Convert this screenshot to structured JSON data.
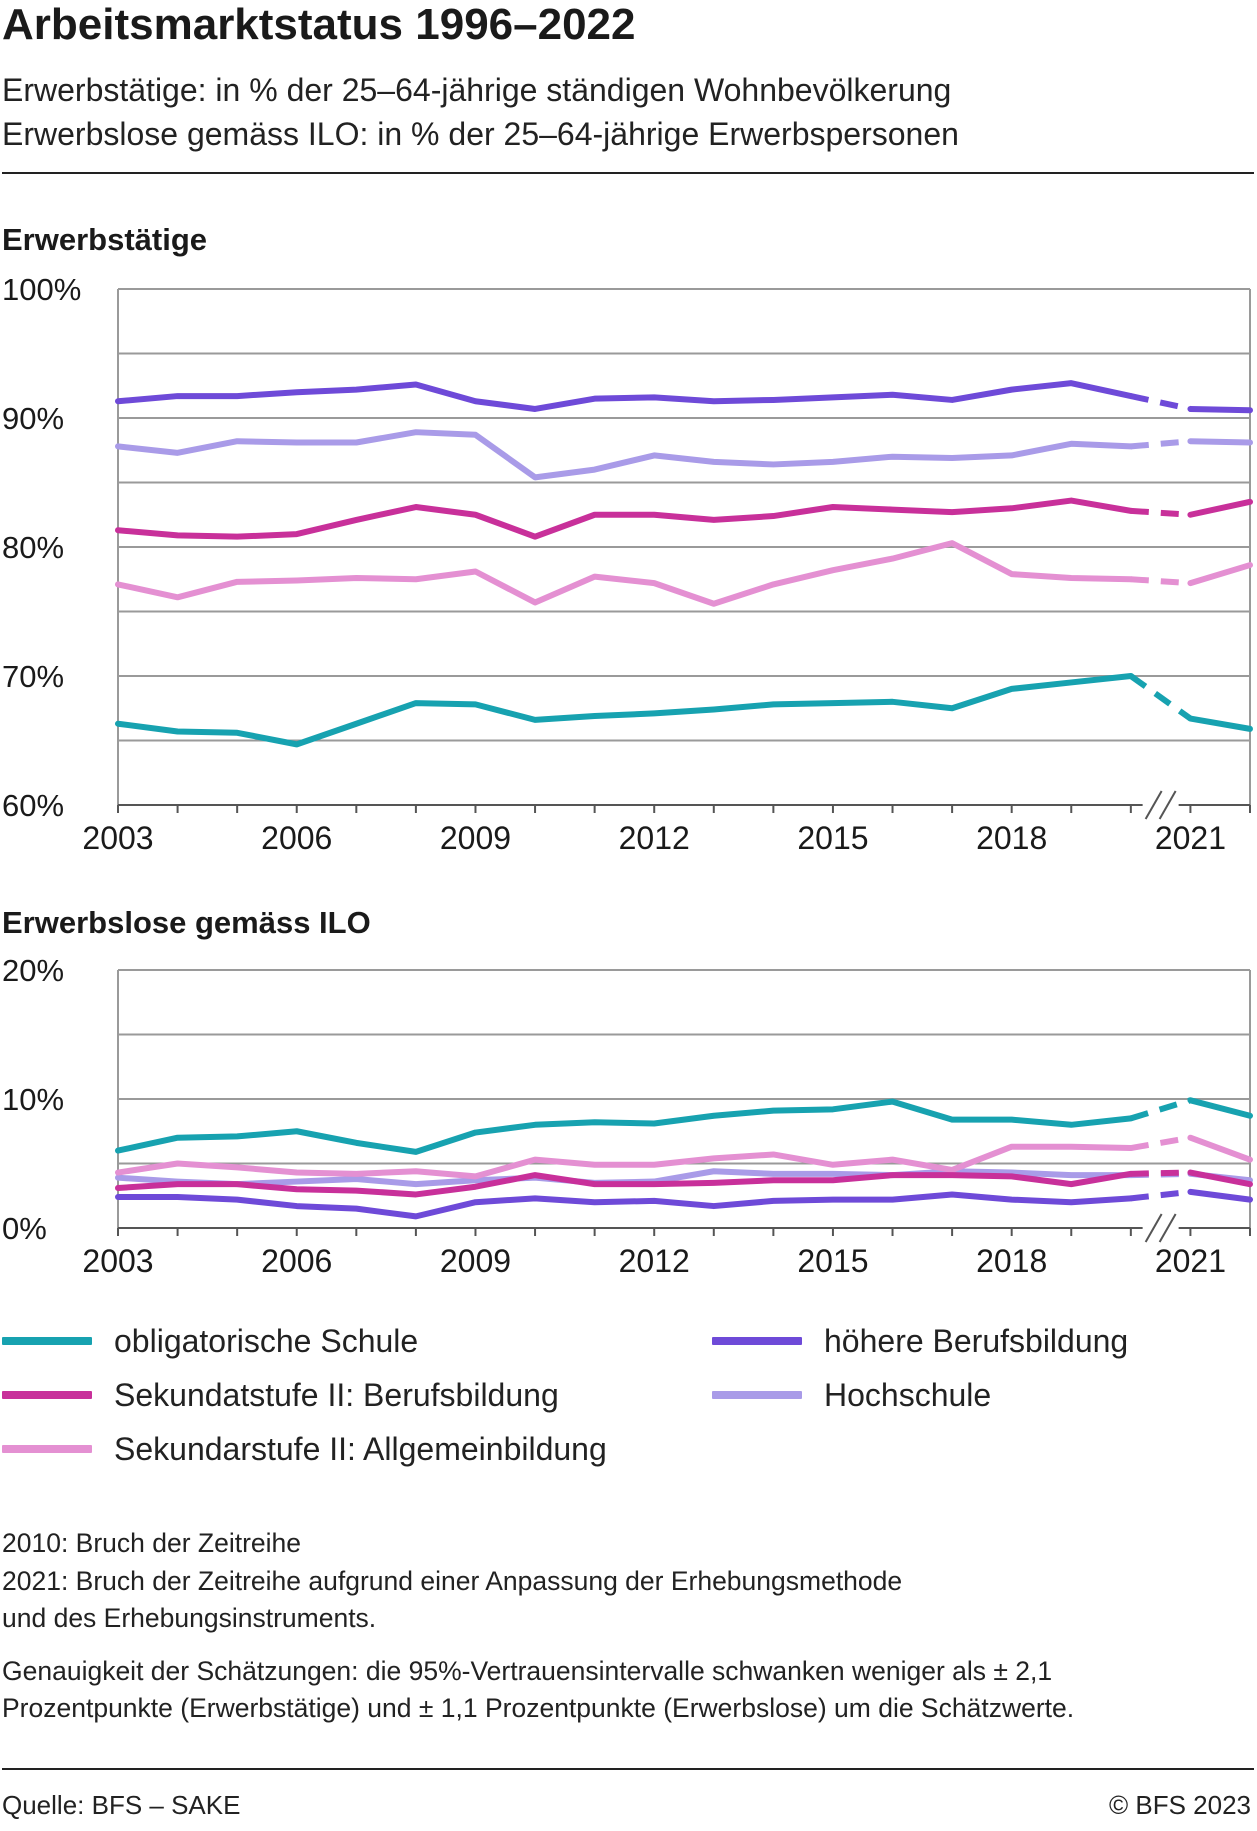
{
  "header": {
    "title": "Arbeitsmarktstatus 1996–2022",
    "subtitle_1": "Erwerbstätige: in % der 25–64-jährige ständigen Wohnbevölkerung",
    "subtitle_2": "Erwerbslose gemäss ILO: in % der 25–64-jährige Erwerbspersonen"
  },
  "colors": {
    "obligatorische_schule": "#17a2b0",
    "sek2_berufsbildung": "#c8309a",
    "sek2_allgemeinbildung": "#e490d2",
    "hoehere_berufsbildung": "#6e4ad8",
    "hochschule": "#a99be8"
  },
  "chart_data": [
    {
      "type": "line",
      "title": "Erwerbstätige",
      "x": [
        2003,
        2004,
        2005,
        2006,
        2007,
        2008,
        2009,
        2010,
        2011,
        2012,
        2013,
        2014,
        2015,
        2016,
        2017,
        2018,
        2019,
        2020,
        2021,
        2022
      ],
      "x_ticks": [
        2003,
        2006,
        2009,
        2012,
        2015,
        2018,
        2021
      ],
      "y_ticks": [
        60,
        70,
        80,
        90,
        100
      ],
      "y_tick_labels": [
        "60%",
        "70%",
        "80%",
        "90%",
        "100%"
      ],
      "ylim": [
        60,
        100
      ],
      "grid": true,
      "series": [
        {
          "name": "höhere Berufsbildung",
          "color_key": "hoehere_berufsbildung",
          "values": [
            91.3,
            91.7,
            91.7,
            92.0,
            92.2,
            92.6,
            91.3,
            90.7,
            91.5,
            91.6,
            91.3,
            91.4,
            91.6,
            91.8,
            91.4,
            92.2,
            92.7,
            91.7,
            90.7,
            90.6
          ]
        },
        {
          "name": "Hochschule",
          "color_key": "hochschule",
          "values": [
            87.8,
            87.3,
            88.2,
            88.1,
            88.1,
            88.9,
            88.7,
            85.4,
            86.0,
            87.1,
            86.6,
            86.4,
            86.6,
            87.0,
            86.9,
            87.1,
            88.0,
            87.8,
            88.2,
            88.1
          ]
        },
        {
          "name": "Sekundatstufe II: Berufsbildung",
          "color_key": "sek2_berufsbildung",
          "values": [
            81.3,
            80.9,
            80.8,
            81.0,
            82.1,
            83.1,
            82.5,
            80.8,
            82.5,
            82.5,
            82.1,
            82.4,
            83.1,
            82.9,
            82.7,
            83.0,
            83.6,
            82.8,
            82.5,
            83.5
          ]
        },
        {
          "name": "Sekundarstufe II: Allgemeinbildung",
          "color_key": "sek2_allgemeinbildung",
          "values": [
            77.1,
            76.1,
            77.3,
            77.4,
            77.6,
            77.5,
            78.1,
            75.7,
            77.7,
            77.2,
            75.6,
            77.1,
            78.2,
            79.1,
            80.3,
            77.9,
            77.6,
            77.5,
            77.2,
            78.6
          ]
        },
        {
          "name": "obligatorische Schule",
          "color_key": "obligatorische_schule",
          "values": [
            66.3,
            65.7,
            65.6,
            64.7,
            66.3,
            67.9,
            67.8,
            66.6,
            66.9,
            67.1,
            67.4,
            67.8,
            67.9,
            68.0,
            67.5,
            69.0,
            69.5,
            70.0,
            66.7,
            65.9
          ]
        }
      ]
    },
    {
      "type": "line",
      "title": "Erwerbslose gemäss ILO",
      "x": [
        2003,
        2004,
        2005,
        2006,
        2007,
        2008,
        2009,
        2010,
        2011,
        2012,
        2013,
        2014,
        2015,
        2016,
        2017,
        2018,
        2019,
        2020,
        2021,
        2022
      ],
      "x_ticks": [
        2003,
        2006,
        2009,
        2012,
        2015,
        2018,
        2021
      ],
      "y_ticks": [
        0,
        10,
        20
      ],
      "y_tick_labels": [
        "0%",
        "10%",
        "20%"
      ],
      "ylim": [
        0,
        20
      ],
      "grid": true,
      "series": [
        {
          "name": "Hochschule",
          "color_key": "hochschule",
          "values": [
            3.9,
            3.6,
            3.4,
            3.6,
            3.8,
            3.4,
            3.7,
            3.9,
            3.5,
            3.6,
            4.4,
            4.2,
            4.2,
            4.1,
            4.4,
            4.3,
            4.1,
            4.1,
            4.2,
            3.7
          ]
        },
        {
          "name": "obligatorische Schule",
          "color_key": "obligatorische_schule",
          "values": [
            6.0,
            7.0,
            7.1,
            7.5,
            6.6,
            5.9,
            7.4,
            8.0,
            8.2,
            8.1,
            8.7,
            9.1,
            9.2,
            9.8,
            8.4,
            8.4,
            8.0,
            8.5,
            9.9,
            8.7
          ]
        },
        {
          "name": "Sekundarstufe II: Allgemeinbildung",
          "color_key": "sek2_allgemeinbildung",
          "values": [
            4.3,
            5.0,
            4.7,
            4.3,
            4.2,
            4.4,
            4.0,
            5.3,
            4.9,
            4.9,
            5.4,
            5.7,
            4.9,
            5.3,
            4.5,
            6.3,
            6.3,
            6.2,
            7.0,
            5.3
          ]
        },
        {
          "name": "Sekundatstufe II: Berufsbildung",
          "color_key": "sek2_berufsbildung",
          "values": [
            3.1,
            3.4,
            3.4,
            3.0,
            2.9,
            2.6,
            3.2,
            4.1,
            3.4,
            3.4,
            3.5,
            3.7,
            3.7,
            4.1,
            4.1,
            4.0,
            3.4,
            4.2,
            4.3,
            3.4
          ]
        },
        {
          "name": "höhere Berufsbildung",
          "color_key": "hoehere_berufsbildung",
          "values": [
            2.4,
            2.4,
            2.2,
            1.7,
            1.5,
            0.9,
            2.0,
            2.3,
            2.0,
            2.1,
            1.7,
            2.1,
            2.2,
            2.2,
            2.6,
            2.2,
            2.0,
            2.3,
            2.8,
            2.2
          ]
        }
      ]
    }
  ],
  "legend": [
    {
      "label": "obligatorische Schule",
      "color_key": "obligatorische_schule"
    },
    {
      "label": "Sekundatstufe II: Berufsbildung",
      "color_key": "sek2_berufsbildung"
    },
    {
      "label": "Sekundarstufe II: Allgemeinbildung",
      "color_key": "sek2_allgemeinbildung"
    },
    {
      "label": "höhere Berufsbildung",
      "color_key": "hoehere_berufsbildung"
    },
    {
      "label": "Hochschule",
      "color_key": "hochschule"
    }
  ],
  "notes": {
    "line1": "2010: Bruch der Zeitreihe",
    "line2": "2021: Bruch der Zeitreihe aufgrund einer Anpassung der Erhebungsmethode",
    "line3": "und des Erhebungsinstruments.",
    "line4": "Genauigkeit der Schätzungen: die 95%-Vertrauensintervalle schwanken weniger als ± 2,1",
    "line5": "Prozentpunkte (Erwerbstätige) und ± 1,1 Prozentpunkte (Erwerbslose) um die Schätzwerte."
  },
  "footer": {
    "source": "Quelle: BFS – SAKE",
    "copyright": "© BFS 2023"
  }
}
